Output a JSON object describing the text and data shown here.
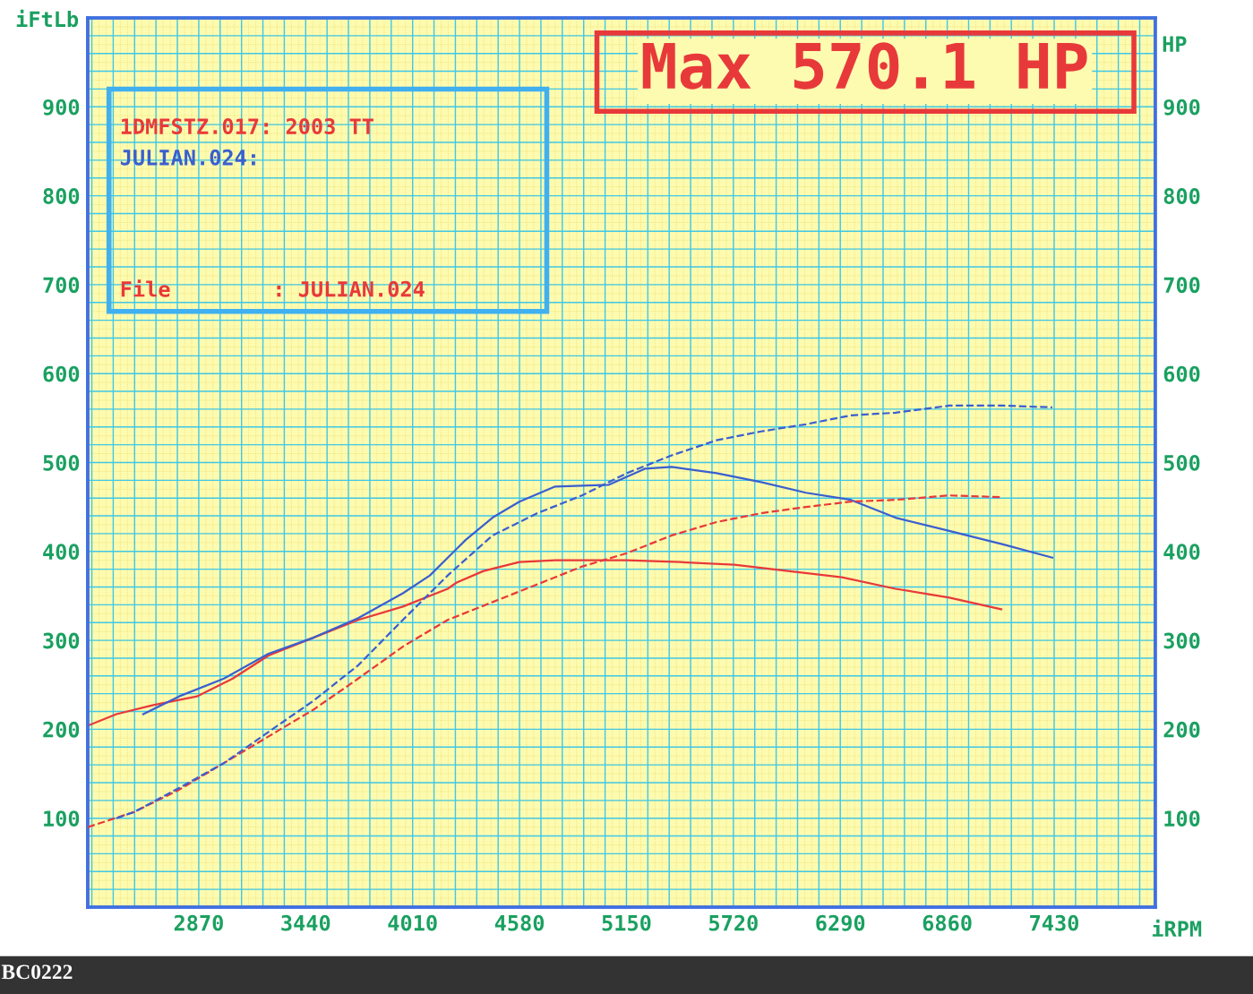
{
  "chart_data": {
    "type": "line",
    "xlabel": "iRPM",
    "ylabel": "iFtLb",
    "y2label": "HP",
    "xlim": [
      2278,
      7969
    ],
    "xticks": [
      2870,
      3440,
      4010,
      4580,
      5150,
      5720,
      6290,
      6860,
      7430
    ],
    "ylim": [
      0,
      1000
    ],
    "yticks": [
      100,
      200,
      300,
      400,
      500,
      600,
      700,
      800,
      900
    ],
    "y2lim": [
      0,
      1000
    ],
    "y2ticks": [
      100,
      200,
      300,
      400,
      500,
      600,
      700,
      800,
      900
    ],
    "grid": true,
    "legend": false,
    "series": [
      {
        "color": "#e8393a",
        "line_style": "solid",
        "x": [
          2278,
          2431,
          2622,
          2860,
          3051,
          3242,
          3481,
          3720,
          3958,
          4197,
          4245,
          4388,
          4579,
          4770,
          5152,
          5438,
          5725,
          6011,
          6298,
          6584,
          6871,
          7148
        ],
        "values": [
          204,
          217,
          227,
          237,
          257,
          283,
          303,
          323,
          338,
          358,
          365,
          378,
          388,
          390,
          390,
          388,
          385,
          378,
          371,
          358,
          348,
          335
        ]
      },
      {
        "color": "#e8393a",
        "line_style": "dashed",
        "x": [
          2278,
          2526,
          2765,
          3004,
          3242,
          3481,
          3720,
          3958,
          4197,
          4436,
          4675,
          4913,
          5152,
          5391,
          5630,
          5868,
          6107,
          6346,
          6584,
          6871,
          7148
        ],
        "values": [
          90,
          107,
          132,
          162,
          192,
          222,
          257,
          293,
          323,
          343,
          363,
          383,
          398,
          418,
          433,
          443,
          450,
          456,
          458,
          463,
          461
        ],
        "axis": "y2"
      },
      {
        "color": "#3a5fd0",
        "line_style": "solid",
        "x": [
          2574,
          2765,
          3004,
          3242,
          3481,
          3720,
          3958,
          4102,
          4293,
          4436,
          4579,
          4770,
          5057,
          5248,
          5391,
          5630,
          5868,
          6107,
          6346,
          6584,
          6871,
          7157,
          7420
        ],
        "values": [
          217,
          237,
          257,
          285,
          303,
          325,
          353,
          373,
          413,
          438,
          456,
          473,
          475,
          493,
          495,
          488,
          478,
          466,
          458,
          438,
          423,
          408,
          393
        ]
      },
      {
        "color": "#3a5fd0",
        "line_style": "dashed",
        "x": [
          2431,
          2526,
          2765,
          3004,
          3242,
          3481,
          3720,
          3958,
          4197,
          4436,
          4675,
          4913,
          5152,
          5391,
          5630,
          5868,
          6107,
          6346,
          6584,
          6871,
          7157,
          7420
        ],
        "values": [
          100,
          107,
          134,
          162,
          197,
          232,
          272,
          323,
          373,
          418,
          443,
          463,
          488,
          508,
          525,
          535,
          543,
          553,
          556,
          564,
          564,
          562
        ],
        "axis": "y2"
      }
    ],
    "annotations": [
      "1DMFSTZ.017: 2003 TT",
      "JULIAN.024:",
      "File        : JULIAN.024",
      "Max 570.1 HP",
      "BC0222"
    ]
  }
}
